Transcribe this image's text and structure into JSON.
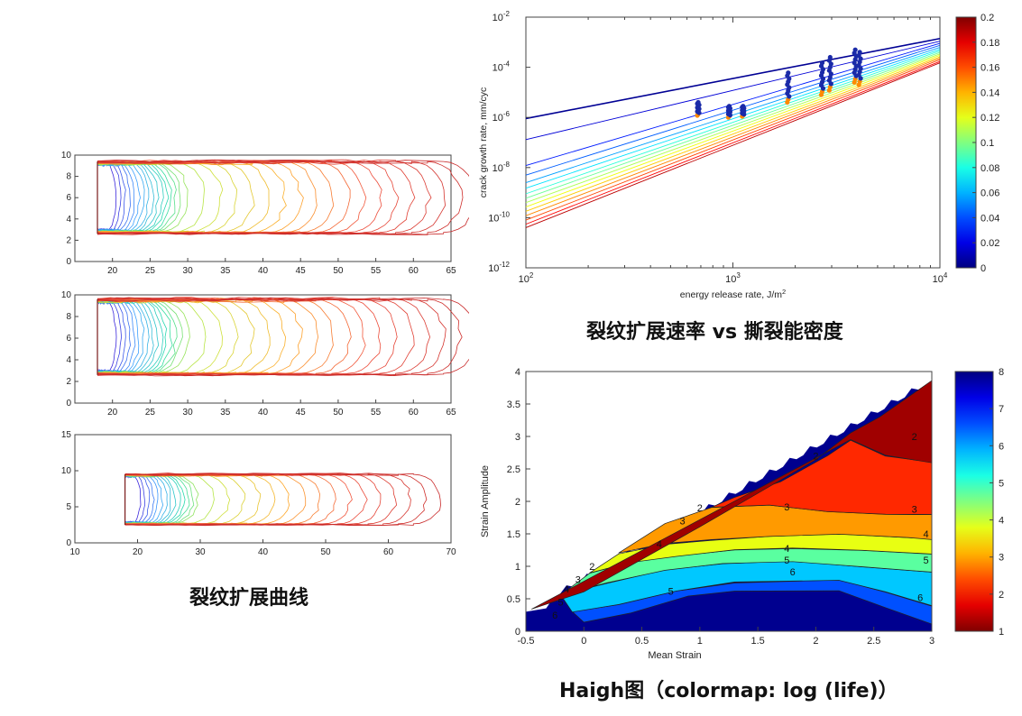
{
  "captions": {
    "left": "裂纹扩展曲线",
    "top_right": "裂纹扩展速率 vs 撕裂能密度",
    "bottom_right": "Haigh图（colormap: log (life)）"
  },
  "colors": {
    "crack_start": "#2a2ad0",
    "crack_end": "#cc1a1a",
    "jet_low": "#00008f",
    "jet_high": "#800000"
  },
  "chart_data": [
    {
      "type": "line",
      "name": "crack-profile-1",
      "xlim": [
        15,
        65
      ],
      "ylim": [
        0,
        10
      ],
      "xticks": [
        "20",
        "25",
        "30",
        "35",
        "40",
        "45",
        "50",
        "55",
        "60",
        "65"
      ],
      "yticks": [
        "0",
        "2",
        "4",
        "6",
        "8",
        "10"
      ],
      "notch_x": 18,
      "notch_top": 9.4,
      "notch_bottom": 2.6,
      "front_x": [
        25,
        27,
        29,
        31,
        33,
        35,
        37,
        39,
        41,
        43,
        45,
        47,
        49,
        51,
        53,
        55,
        57,
        59,
        61,
        63,
        65
      ],
      "top_y": 9.4,
      "bottom_y": 2.6,
      "contour_count": 34
    },
    {
      "type": "line",
      "name": "crack-profile-2",
      "xlim": [
        15,
        65
      ],
      "ylim": [
        0,
        10
      ],
      "xticks": [
        "20",
        "25",
        "30",
        "35",
        "40",
        "45",
        "50",
        "55",
        "60",
        "65"
      ],
      "yticks": [
        "0",
        "2",
        "4",
        "6",
        "8",
        "10"
      ],
      "notch_x": 18,
      "notch_top": 9.6,
      "notch_bottom": 2.6,
      "front_x": [
        25,
        27,
        29,
        31,
        33,
        35,
        37,
        39,
        41,
        43,
        45,
        47,
        49,
        51,
        53,
        55,
        57,
        59,
        61,
        63,
        65
      ],
      "top_y": 9.6,
      "bottom_y": 2.6,
      "contour_count": 34
    },
    {
      "type": "line",
      "name": "crack-profile-3",
      "xlim": [
        10,
        70
      ],
      "ylim": [
        0,
        15
      ],
      "xticks": [
        "10",
        "20",
        "30",
        "40",
        "50",
        "60",
        "70"
      ],
      "yticks": [
        "0",
        "5",
        "10",
        "15"
      ],
      "notch_x": 18,
      "notch_top": 9.5,
      "notch_bottom": 2.5,
      "front_x": [
        25,
        27,
        29,
        31,
        33,
        35,
        37,
        39,
        41,
        43,
        45,
        47,
        49,
        51,
        53,
        55,
        57,
        59,
        61,
        63,
        65
      ],
      "top_y": 9.5,
      "bottom_y": 2.5,
      "contour_count": 30
    },
    {
      "type": "line",
      "name": "crack-growth-rate",
      "x_scale": "log",
      "y_scale": "log",
      "xlim": [
        100,
        10000
      ],
      "ylim": [
        1e-12,
        0.01
      ],
      "xlabel": "energy release rate, J/m",
      "xlabel_sup": "2",
      "ylabel": "crack growth rate, mm/cyc",
      "x_tick_bases": [
        "10",
        "10",
        "10"
      ],
      "x_tick_exps": [
        "2",
        "3",
        "4"
      ],
      "y_tick_bases": [
        "10",
        "10",
        "10",
        "10",
        "10",
        "10"
      ],
      "y_tick_exps": [
        "-12",
        "-10",
        "-8",
        "-6",
        "-4",
        "-2"
      ],
      "colorbar": {
        "min": 0,
        "max": 0.2,
        "ticks": [
          "0",
          "0.02",
          "0.04",
          "0.06",
          "0.08",
          "0.1",
          "0.12",
          "0.14",
          "0.16",
          "0.18",
          "0.2"
        ]
      },
      "lines_at_G100": [
        9e-07,
        1.3e-07,
        1.2e-08,
        5e-09,
        2.5e-09,
        1.5e-09,
        9e-10,
        6e-10,
        4e-10,
        2.7e-10,
        1.8e-10,
        1.2e-10,
        8e-11,
        5.5e-11,
        4e-11
      ],
      "lines_at_G10000": [
        0.0014,
        0.0011,
        0.0009,
        0.00075,
        0.00062,
        0.00052,
        0.00045,
        0.00039,
        0.00034,
        0.0003,
        0.00026,
        0.00023,
        0.0002,
        0.00017,
        0.00015
      ],
      "points": [
        {
          "G": 680,
          "rates": [
            4e-06,
            2e-06,
            1.2e-06
          ]
        },
        {
          "G": 960,
          "rates": [
            2.8e-06,
            1.5e-06,
            1e-06
          ]
        },
        {
          "G": 1120,
          "rates": [
            2.8e-06,
            1.6e-06,
            1.1e-06
          ]
        },
        {
          "G": 1850,
          "rates": [
            6e-05,
            2e-05,
            4e-06
          ]
        },
        {
          "G": 2700,
          "rates": [
            0.00015,
            5e-05,
            8e-06
          ]
        },
        {
          "G": 2950,
          "rates": [
            0.00025,
            8e-05,
            1.2e-05
          ]
        },
        {
          "G": 3900,
          "rates": [
            0.0005,
            0.00015,
            2.5e-05
          ]
        },
        {
          "G": 4100,
          "rates": [
            0.0004,
            0.0001,
            2e-05
          ]
        }
      ]
    },
    {
      "type": "heatmap",
      "name": "haigh-diagram",
      "xlim": [
        -0.5,
        3
      ],
      "ylim": [
        0,
        4
      ],
      "xlabel": "Mean Strain",
      "ylabel": "Strain Amplitude",
      "xticks": [
        "-0.5",
        "0",
        "0.5",
        "1",
        "1.5",
        "2",
        "2.5",
        "3"
      ],
      "yticks": [
        "0",
        "0.5",
        "1",
        "1.5",
        "2",
        "2.5",
        "3",
        "3.5",
        "4"
      ],
      "colorbar": {
        "min": 1,
        "max": 8,
        "ticks": [
          "1",
          "2",
          "3",
          "4",
          "5",
          "6",
          "7",
          "8"
        ]
      },
      "contour_levels": [
        {
          "level": 1,
          "color": "#a00000",
          "pts": [
            [
              -0.45,
              0.33
            ],
            [
              0,
              0.62
            ],
            [
              1,
              1.6
            ],
            [
              2,
              2.65
            ],
            [
              2.3,
              3.05
            ],
            [
              2.55,
              3.3
            ],
            [
              3,
              3.85
            ],
            [
              3,
              2.6
            ],
            [
              2.6,
              2.7
            ],
            [
              2.3,
              2.95
            ]
          ]
        },
        {
          "level": 2,
          "color": "#ff2800",
          "pts": [
            [
              2.3,
              2.95
            ],
            [
              2.1,
              2.7
            ],
            [
              1.7,
              2.3
            ],
            [
              1.3,
              2.05
            ],
            [
              1.1,
              1.9
            ],
            [
              1.6,
              1.95
            ],
            [
              2.1,
              1.85
            ],
            [
              2.6,
              1.8
            ],
            [
              3,
              1.8
            ],
            [
              3,
              2.6
            ],
            [
              2.6,
              2.7
            ]
          ]
        },
        {
          "level": 3,
          "color": "#ff9a00",
          "pts": [
            [
              1.1,
              1.9
            ],
            [
              0.7,
              1.65
            ],
            [
              0.3,
              1.2
            ],
            [
              0.7,
              1.35
            ],
            [
              1.1,
              1.4
            ],
            [
              1.6,
              1.45
            ],
            [
              2.2,
              1.5
            ],
            [
              2.8,
              1.45
            ],
            [
              3,
              1.42
            ],
            [
              3,
              1.8
            ],
            [
              2.6,
              1.8
            ],
            [
              2.1,
              1.85
            ],
            [
              1.6,
              1.95
            ]
          ]
        },
        {
          "level": 4,
          "color": "#e8ff12",
          "pts": [
            [
              0.3,
              1.2
            ],
            [
              0.05,
              0.9
            ],
            [
              0.4,
              1.05
            ],
            [
              0.8,
              1.15
            ],
            [
              1.3,
              1.25
            ],
            [
              1.8,
              1.28
            ],
            [
              2.4,
              1.25
            ],
            [
              3,
              1.2
            ],
            [
              3,
              1.42
            ],
            [
              2.8,
              1.45
            ],
            [
              2.2,
              1.5
            ],
            [
              1.6,
              1.45
            ],
            [
              1.1,
              1.4
            ],
            [
              0.7,
              1.35
            ]
          ]
        },
        {
          "level": 5,
          "color": "#5affa0",
          "pts": [
            [
              0.05,
              0.9
            ],
            [
              -0.2,
              0.55
            ],
            [
              0.2,
              0.75
            ],
            [
              0.7,
              0.95
            ],
            [
              1.2,
              1.05
            ],
            [
              1.8,
              1.08
            ],
            [
              2.4,
              1.0
            ],
            [
              3,
              0.92
            ],
            [
              3,
              1.2
            ],
            [
              2.4,
              1.25
            ],
            [
              1.8,
              1.28
            ],
            [
              1.3,
              1.25
            ],
            [
              0.8,
              1.15
            ],
            [
              0.4,
              1.05
            ]
          ]
        },
        {
          "level": 6,
          "color": "#00c8ff",
          "pts": [
            [
              -0.2,
              0.55
            ],
            [
              -0.1,
              0.3
            ],
            [
              0.3,
              0.42
            ],
            [
              0.8,
              0.62
            ],
            [
              1.3,
              0.75
            ],
            [
              2.2,
              0.78
            ],
            [
              2.6,
              0.6
            ],
            [
              3,
              0.4
            ],
            [
              3,
              0.92
            ],
            [
              2.4,
              1.0
            ],
            [
              1.8,
              1.08
            ],
            [
              1.2,
              1.05
            ],
            [
              0.7,
              0.95
            ],
            [
              0.2,
              0.75
            ]
          ]
        },
        {
          "level": 7,
          "color": "#0050ff",
          "pts": [
            [
              -0.1,
              0.3
            ],
            [
              0,
              0.15
            ],
            [
              0.4,
              0.28
            ],
            [
              0.9,
              0.55
            ],
            [
              1.3,
              0.62
            ],
            [
              2.2,
              0.62
            ],
            [
              2.6,
              0.35
            ],
            [
              3,
              0.1
            ],
            [
              3,
              0.4
            ],
            [
              2.6,
              0.6
            ],
            [
              2.2,
              0.78
            ],
            [
              1.3,
              0.75
            ],
            [
              0.8,
              0.62
            ],
            [
              0.3,
              0.42
            ]
          ]
        }
      ],
      "labels": [
        {
          "x": 2.0,
          "y": 2.7,
          "t": "2"
        },
        {
          "x": 2.85,
          "y": 3.0,
          "t": "2"
        },
        {
          "x": 1.0,
          "y": 1.9,
          "t": "2"
        },
        {
          "x": 0.07,
          "y": 1.0,
          "t": "2"
        },
        {
          "x": 0.85,
          "y": 1.7,
          "t": "3"
        },
        {
          "x": 1.75,
          "y": 1.92,
          "t": "3"
        },
        {
          "x": 2.85,
          "y": 1.88,
          "t": "3"
        },
        {
          "x": -0.05,
          "y": 0.8,
          "t": "3"
        },
        {
          "x": 0.65,
          "y": 1.35,
          "t": "4"
        },
        {
          "x": 1.75,
          "y": 1.28,
          "t": "4"
        },
        {
          "x": 2.95,
          "y": 1.5,
          "t": "4"
        },
        {
          "x": -0.15,
          "y": 0.65,
          "t": "4"
        },
        {
          "x": 1.75,
          "y": 1.1,
          "t": "5"
        },
        {
          "x": 2.95,
          "y": 1.1,
          "t": "5"
        },
        {
          "x": 0.75,
          "y": 0.62,
          "t": "5"
        },
        {
          "x": -0.2,
          "y": 0.45,
          "t": "5"
        },
        {
          "x": 1.8,
          "y": 0.92,
          "t": "6"
        },
        {
          "x": 2.9,
          "y": 0.52,
          "t": "6"
        },
        {
          "x": -0.25,
          "y": 0.25,
          "t": "6"
        }
      ]
    }
  ]
}
